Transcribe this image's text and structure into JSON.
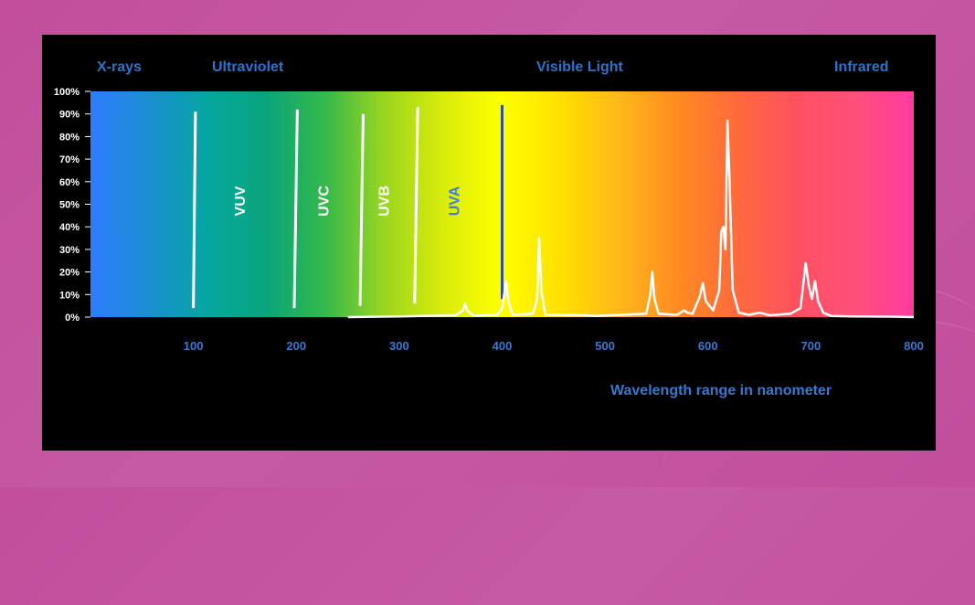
{
  "chart_data": {
    "type": "line",
    "title": "",
    "region_labels": [
      "X-rays",
      "Ultraviolet",
      "Visible Light",
      "Infrared"
    ],
    "band_labels": [
      "VUV",
      "UVC",
      "UVB",
      "UVA"
    ],
    "xlabel": "Wavelength range in nanometer",
    "ylabel": "",
    "xlim": [
      0,
      800
    ],
    "ylim": [
      0,
      100
    ],
    "x_ticks": [
      "100",
      "200",
      "300",
      "400",
      "500",
      "600",
      "700",
      "800"
    ],
    "y_ticks": [
      "0%",
      "10%",
      "20%",
      "30%",
      "40%",
      "50%",
      "60%",
      "70%",
      "80%",
      "90%",
      "100%"
    ],
    "divider_lines": [
      {
        "x0": 100,
        "y0": 4,
        "x1": 102,
        "y1": 91
      },
      {
        "x0": 198,
        "y0": 4,
        "x1": 201,
        "y1": 92
      },
      {
        "x0": 262,
        "y0": 5,
        "x1": 265,
        "y1": 90
      },
      {
        "x0": 315,
        "y0": 6,
        "x1": 318,
        "y1": 93
      },
      {
        "x0": 400,
        "y0": 8,
        "x1": 400,
        "y1": 94
      }
    ],
    "series": [
      {
        "values": [
          [
            250,
            0
          ],
          [
            300,
            0.3
          ],
          [
            355,
            0.8
          ],
          [
            362,
            3
          ],
          [
            364,
            6
          ],
          [
            366,
            3
          ],
          [
            372,
            0.6
          ],
          [
            395,
            1
          ],
          [
            400,
            4
          ],
          [
            404,
            16
          ],
          [
            406,
            7
          ],
          [
            410,
            1
          ],
          [
            430,
            1.5
          ],
          [
            434,
            8
          ],
          [
            436,
            35
          ],
          [
            438,
            12
          ],
          [
            442,
            1
          ],
          [
            480,
            0.8
          ],
          [
            490,
            0.5
          ],
          [
            540,
            1.5
          ],
          [
            544,
            10
          ],
          [
            546,
            20
          ],
          [
            548,
            8
          ],
          [
            552,
            1.5
          ],
          [
            570,
            1
          ],
          [
            577,
            3
          ],
          [
            580,
            2
          ],
          [
            585,
            1.5
          ],
          [
            592,
            9
          ],
          [
            595,
            15
          ],
          [
            598,
            7
          ],
          [
            605,
            3
          ],
          [
            611,
            12
          ],
          [
            613,
            38
          ],
          [
            615,
            40
          ],
          [
            617,
            30
          ],
          [
            619,
            87
          ],
          [
            621,
            60
          ],
          [
            624,
            12
          ],
          [
            630,
            2
          ],
          [
            640,
            1
          ],
          [
            650,
            2
          ],
          [
            660,
            0.8
          ],
          [
            680,
            1.5
          ],
          [
            690,
            4
          ],
          [
            695,
            24
          ],
          [
            698,
            14
          ],
          [
            701,
            8
          ],
          [
            704,
            16
          ],
          [
            707,
            7
          ],
          [
            712,
            2
          ],
          [
            720,
            0.5
          ],
          [
            740,
            0.3
          ],
          [
            780,
            0.2
          ],
          [
            800,
            0
          ]
        ]
      }
    ],
    "colors": {
      "region_label": "#2f72c9",
      "tick": "#3a78d0",
      "axis_text": "#ffffff",
      "line": "#ffffff",
      "uva_label": "#3f7fd6",
      "uva_line": "#2f4fa0"
    },
    "spectrum_colors": [
      "#2e7bff",
      "#1a8fd0",
      "#05a6a0",
      "#0aa57a",
      "#36b94a",
      "#9ad61f",
      "#d9ec0b",
      "#ffff00",
      "#ffe000",
      "#ffb71a",
      "#ff8a22",
      "#ff6a3c",
      "#ff5060",
      "#ff4f7a",
      "#ff3aa0"
    ]
  }
}
